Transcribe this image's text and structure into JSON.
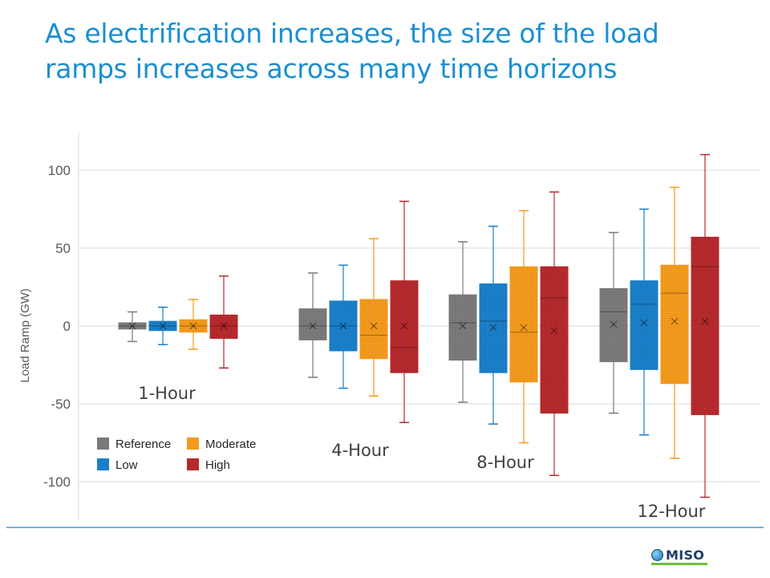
{
  "title": "As electrification increases, the size of the load ramps increases across many time horizons",
  "logo": {
    "text": "MISO"
  },
  "chart_data": {
    "type": "box",
    "ylabel": "Load Ramp (GW)",
    "ylim": [
      -125,
      125
    ],
    "yticks": [
      100,
      50,
      0,
      -50,
      -100
    ],
    "grid": true,
    "legend_position": "bottom-left",
    "series": [
      {
        "name": "Reference",
        "color": "#7a7a7a"
      },
      {
        "name": "Low",
        "color": "#1a7fc8"
      },
      {
        "name": "Moderate",
        "color": "#f39a1c"
      },
      {
        "name": "High",
        "color": "#b52a2c"
      }
    ],
    "groups": [
      {
        "label": "1-Hour",
        "boxes": [
          {
            "series": "Reference",
            "min": -10,
            "q1": -2,
            "median": 0,
            "q3": 2,
            "max": 9,
            "mean": 0
          },
          {
            "series": "Low",
            "min": -12,
            "q1": -3,
            "median": 0,
            "q3": 3,
            "max": 12,
            "mean": 0
          },
          {
            "series": "Moderate",
            "min": -15,
            "q1": -4,
            "median": 0,
            "q3": 4,
            "max": 17,
            "mean": 0
          },
          {
            "series": "High",
            "min": -27,
            "q1": -8,
            "median": 0,
            "q3": 7,
            "max": 32,
            "mean": 0
          }
        ]
      },
      {
        "label": "4-Hour",
        "boxes": [
          {
            "series": "Reference",
            "min": -33,
            "q1": -9,
            "median": 0,
            "q3": 11,
            "max": 34,
            "mean": 0
          },
          {
            "series": "Low",
            "min": -40,
            "q1": -16,
            "median": 0,
            "q3": 16,
            "max": 39,
            "mean": 0
          },
          {
            "series": "Moderate",
            "min": -45,
            "q1": -21,
            "median": -6,
            "q3": 17,
            "max": 56,
            "mean": 0
          },
          {
            "series": "High",
            "min": -62,
            "q1": -30,
            "median": -14,
            "q3": 29,
            "max": 80,
            "mean": 0
          }
        ]
      },
      {
        "label": "8-Hour",
        "boxes": [
          {
            "series": "Reference",
            "min": -49,
            "q1": -22,
            "median": 2,
            "q3": 20,
            "max": 54,
            "mean": 0
          },
          {
            "series": "Low",
            "min": -63,
            "q1": -30,
            "median": 3,
            "q3": 27,
            "max": 64,
            "mean": -1
          },
          {
            "series": "Moderate",
            "min": -75,
            "q1": -36,
            "median": -4,
            "q3": 38,
            "max": 74,
            "mean": -1
          },
          {
            "series": "High",
            "min": -96,
            "q1": -56,
            "median": 18,
            "q3": 38,
            "max": 86,
            "mean": -3
          }
        ]
      },
      {
        "label": "12-Hour",
        "boxes": [
          {
            "series": "Reference",
            "min": -56,
            "q1": -23,
            "median": 9,
            "q3": 24,
            "max": 60,
            "mean": 1
          },
          {
            "series": "Low",
            "min": -70,
            "q1": -28,
            "median": 14,
            "q3": 29,
            "max": 75,
            "mean": 2
          },
          {
            "series": "Moderate",
            "min": -85,
            "q1": -37,
            "median": 21,
            "q3": 39,
            "max": 89,
            "mean": 3
          },
          {
            "series": "High",
            "min": -110,
            "q1": -57,
            "median": 38,
            "q3": 57,
            "max": 110,
            "mean": 3
          }
        ]
      }
    ]
  }
}
